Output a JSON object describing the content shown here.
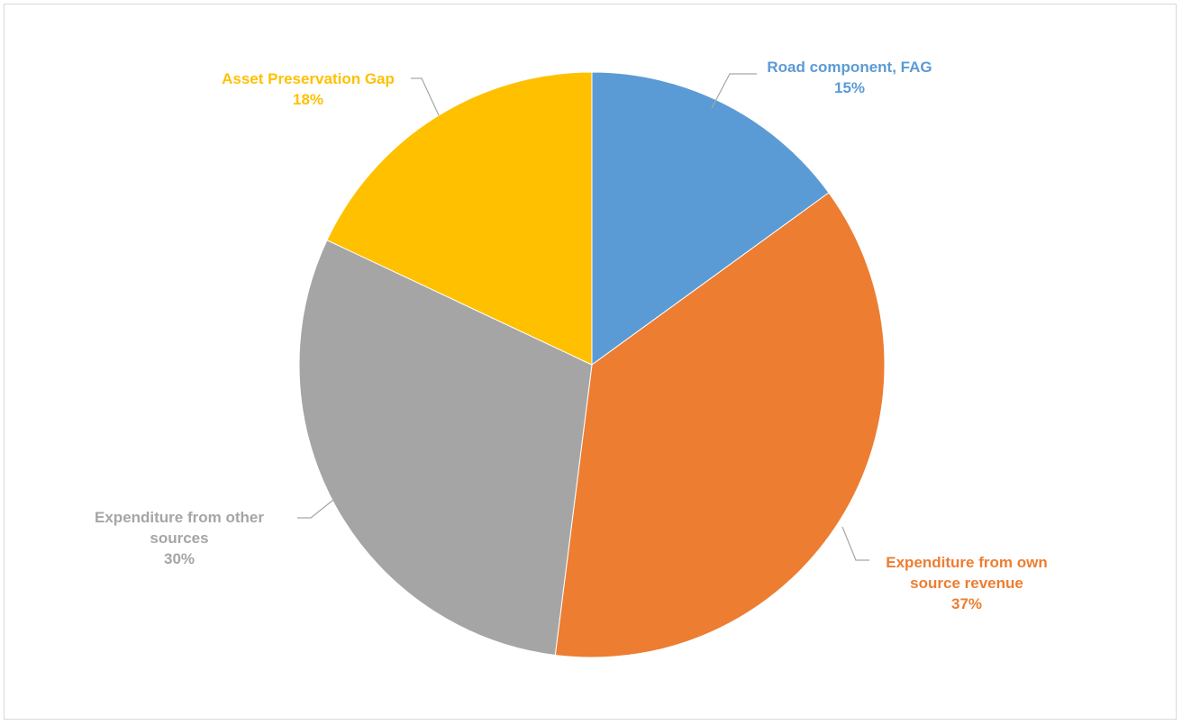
{
  "chart_data": {
    "type": "pie",
    "title": "",
    "slices": [
      {
        "label": "Road component, FAG",
        "value": 15,
        "display": "15%",
        "color": "#5b9bd5"
      },
      {
        "label": "Expenditure from own source revenue",
        "value": 37,
        "display": "37%",
        "color": "#ed7d31"
      },
      {
        "label": "Expenditure from other sources",
        "value": 30,
        "display": "30%",
        "color": "#a5a5a5"
      },
      {
        "label": "Asset Preservation Gap",
        "value": 18,
        "display": "18%",
        "color": "#ffc000"
      }
    ],
    "label_lines": [
      [
        "Road component, FAG",
        "15%"
      ],
      [
        "Expenditure from own",
        "source revenue",
        "37%"
      ],
      [
        "Expenditure from other",
        "sources",
        "30%"
      ],
      [
        "Asset Preservation Gap",
        "18%"
      ]
    ],
    "start_angle": "12 o'clock",
    "direction": "clockwise",
    "legend": "none",
    "leader_lines": true
  }
}
